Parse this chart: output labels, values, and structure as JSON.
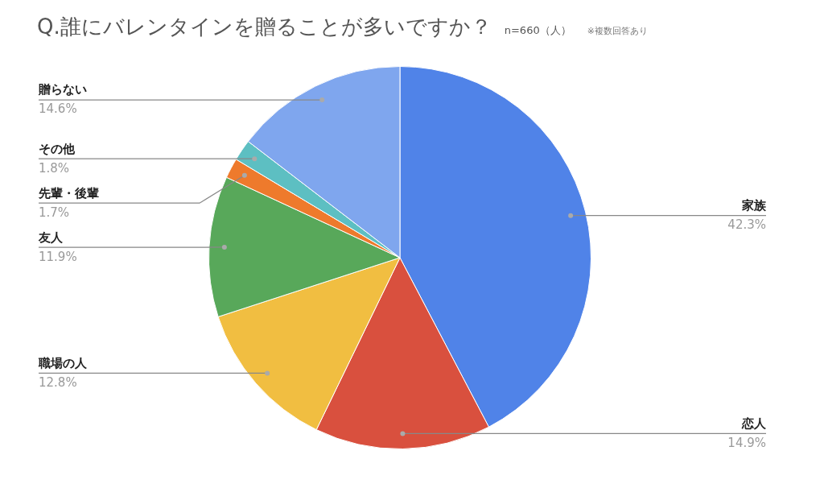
{
  "chart_data": {
    "type": "pie",
    "title": "Q.誰にバレンタインを贈ることが多いですか？",
    "subtitle": "n=660（人）",
    "annotations": [
      "※複数回答あり"
    ],
    "categories": [
      "家族",
      "恋人",
      "職場の人",
      "友人",
      "先輩・後輩",
      "その他",
      "贈らない"
    ],
    "values": [
      42.3,
      14.9,
      12.8,
      11.9,
      1.7,
      1.8,
      14.6
    ],
    "value_labels": [
      "42.3%",
      "14.9%",
      "12.8%",
      "11.9%",
      "1.7%",
      "1.8%",
      "14.6%"
    ],
    "colors": [
      "#5083e8",
      "#d9503e",
      "#f1be41",
      "#58a85a",
      "#ee7a2c",
      "#5dbfc2",
      "#7fa6ee"
    ],
    "legend": false
  }
}
